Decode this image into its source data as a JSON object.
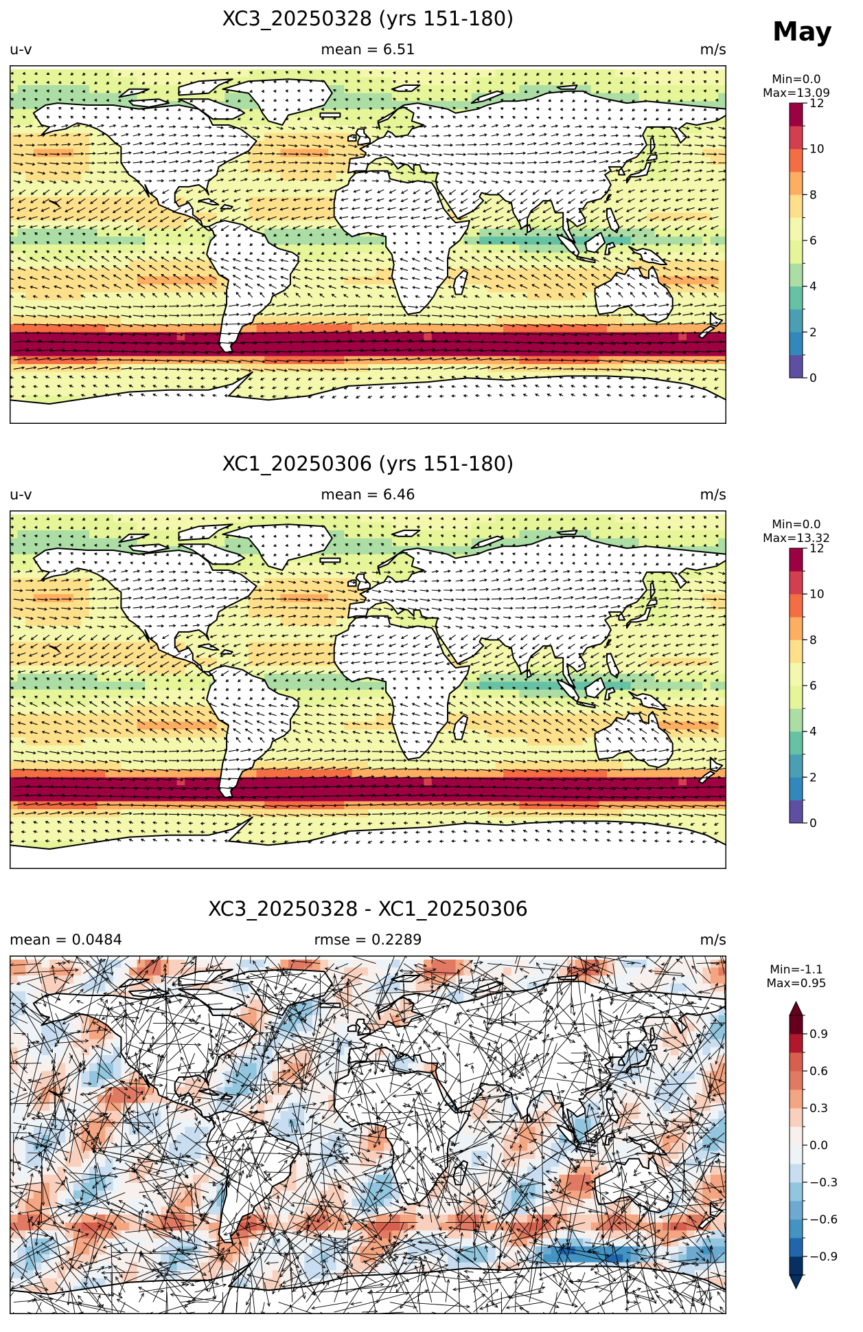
{
  "month_label": "May",
  "colors": {
    "wind_scale": [
      "#5e4fa2",
      "#3288bd",
      "#4a9fb5",
      "#66c2a5",
      "#abdda4",
      "#e6f598",
      "#f4f8ad",
      "#fee08b",
      "#fdae61",
      "#f46d43",
      "#d53e4f",
      "#9e0142"
    ],
    "diff_scale": [
      "#053061",
      "#2166ac",
      "#4393c3",
      "#6ea9d0",
      "#92c5de",
      "#c8def0",
      "#eef3f7",
      "#f7f0ec",
      "#f9d0bd",
      "#f4a582",
      "#e07a63",
      "#d6604d",
      "#b2182b",
      "#67001f"
    ],
    "land": "#ffffff",
    "coast": "#000000",
    "arrow": "#000000"
  },
  "chart_data": [
    {
      "type": "heatmap",
      "title": "XC3_20250328 (yrs 151-180)",
      "left_label": "u-v",
      "center_label": "mean = 6.51",
      "right_label": "m/s",
      "variable": "wind speed with u-v vectors",
      "mean": 6.51,
      "colorbar": {
        "min_label": "Min=0.0",
        "max_label": "Max=13.09",
        "min": 0.0,
        "max": 13.09,
        "range": [
          0,
          12
        ],
        "ticks": [
          0,
          2,
          4,
          6,
          8,
          10,
          12
        ],
        "tick_labels": [
          "0",
          "2",
          "4",
          "6",
          "8",
          "10",
          "12"
        ],
        "levels": 12
      }
    },
    {
      "type": "heatmap",
      "title": "XC1_20250306 (yrs 151-180)",
      "left_label": "u-v",
      "center_label": "mean = 6.46",
      "right_label": "m/s",
      "variable": "wind speed with u-v vectors",
      "mean": 6.46,
      "colorbar": {
        "min_label": "Min=0.0",
        "max_label": "Max=13.32",
        "min": 0.0,
        "max": 13.32,
        "range": [
          0,
          12
        ],
        "ticks": [
          0,
          2,
          4,
          6,
          8,
          10,
          12
        ],
        "tick_labels": [
          "0",
          "2",
          "4",
          "6",
          "8",
          "10",
          "12"
        ],
        "levels": 12
      }
    },
    {
      "type": "heatmap",
      "title": "XC3_20250328 - XC1_20250306",
      "left_label": "mean = 0.0484",
      "center_label": "rmse = 0.2289",
      "right_label": "m/s",
      "variable": "wind speed difference with u-v difference vectors",
      "mean": 0.0484,
      "rmse": 0.2289,
      "colorbar": {
        "min_label": "Min=-1.1",
        "max_label": "Max=0.95",
        "min": -1.1,
        "max": 0.95,
        "range": [
          -1.05,
          1.05
        ],
        "ticks": [
          -0.9,
          -0.6,
          -0.3,
          0.0,
          0.3,
          0.6,
          0.9
        ],
        "tick_labels": [
          "−0.9",
          "−0.6",
          "−0.3",
          "0.0",
          "0.3",
          "0.6",
          "0.9"
        ],
        "levels": 14,
        "extend": "both"
      }
    }
  ]
}
